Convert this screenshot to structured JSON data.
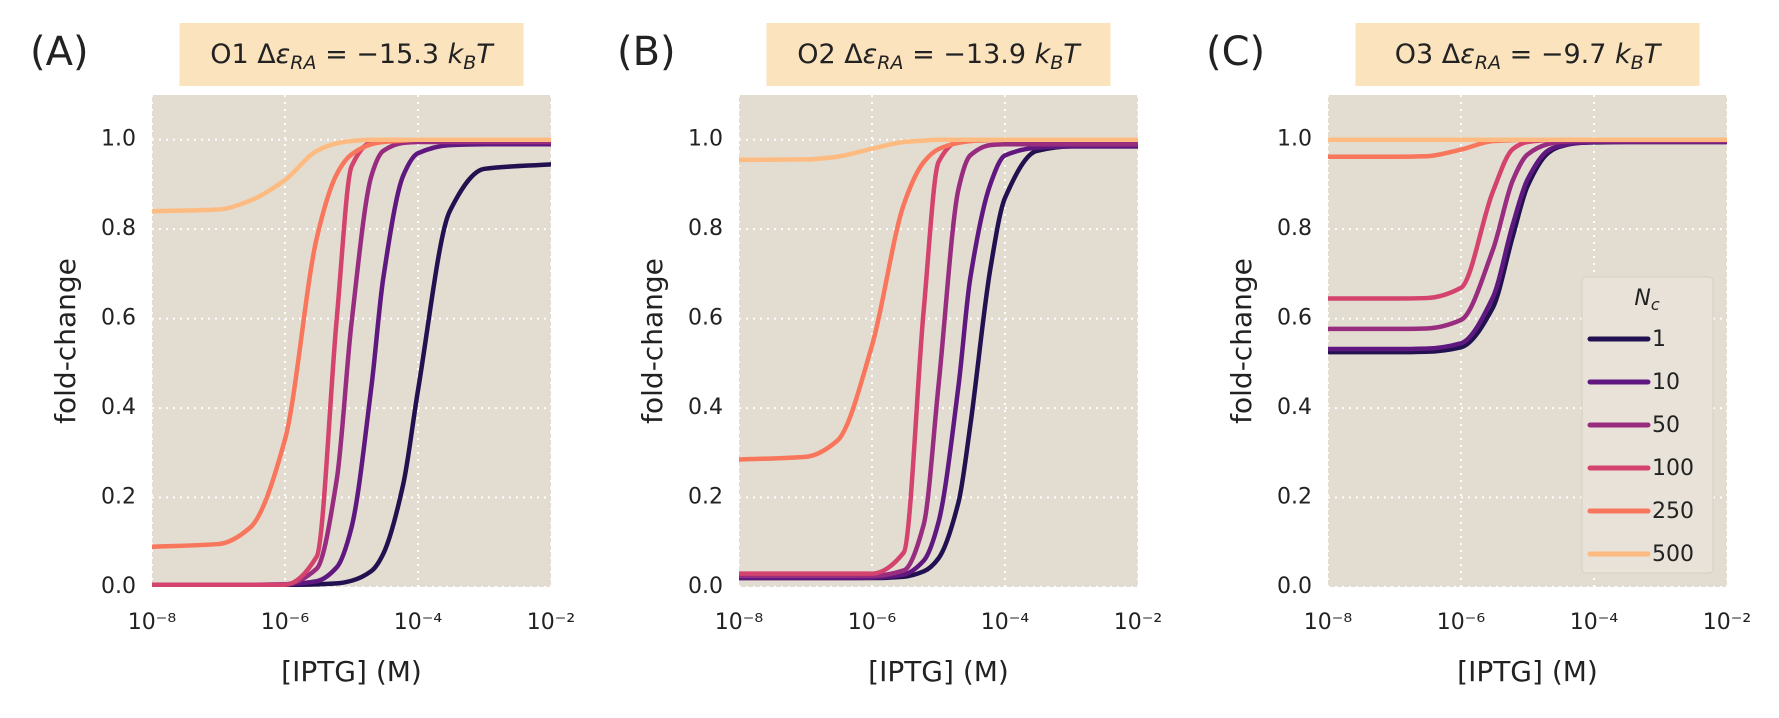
{
  "chart_data": [
    {
      "type": "line",
      "panel_label": "(A)",
      "title": [
        "O1 Δ",
        "ε",
        "RA",
        " = −15.3 ",
        "k",
        "B",
        "T"
      ],
      "xlabel": "[IPTG] (M)",
      "ylabel": "fold-change",
      "xscale": "log",
      "grid": true,
      "x": [
        1e-08,
        1e-07,
        3e-07,
        1e-06,
        3e-06,
        6e-06,
        1e-05,
        2e-05,
        3e-05,
        6e-05,
        0.0001,
        0.0003,
        0.001,
        0.01
      ],
      "xlim": [
        1e-08,
        0.01
      ],
      "xticks": [
        {
          "value": 1e-08,
          "label": "10⁻⁸"
        },
        {
          "value": 1e-06,
          "label": "10⁻⁶"
        },
        {
          "value": 0.0001,
          "label": "10⁻⁴"
        },
        {
          "value": 0.01,
          "label": "10⁻²"
        }
      ],
      "ylim": [
        0,
        1.1
      ],
      "yticks": [
        {
          "value": 0,
          "label": "0.0"
        },
        0.2,
        0.4,
        0.6,
        0.8,
        {
          "value": 1,
          "label": "1.0"
        }
      ],
      "series": [
        {
          "color": "#221150",
          "values": [
            0.005,
            0.005,
            0.005,
            0.005,
            0.006,
            0.008,
            0.014,
            0.036,
            0.074,
            0.23,
            0.44,
            0.84,
            0.935,
            0.945
          ]
        },
        {
          "color": "#5f187f",
          "values": [
            0.005,
            0.005,
            0.005,
            0.006,
            0.013,
            0.044,
            0.133,
            0.45,
            0.69,
            0.92,
            0.97,
            0.988,
            0.99,
            0.99
          ]
        },
        {
          "color": "#982d80",
          "values": [
            0.005,
            0.005,
            0.005,
            0.006,
            0.041,
            0.24,
            0.59,
            0.92,
            0.975,
            0.993,
            0.995,
            0.995,
            0.995,
            0.995
          ]
        },
        {
          "color": "#d3436e",
          "values": [
            0.005,
            0.005,
            0.005,
            0.005,
            0.068,
            0.6,
            0.94,
            0.995,
            0.999,
            1,
            1,
            1,
            1,
            1
          ]
        },
        {
          "color": "#f8765c",
          "values": [
            0.09,
            0.096,
            0.133,
            0.33,
            0.78,
            0.923,
            0.967,
            0.99,
            0.995,
            0.998,
            1,
            1,
            1,
            1
          ]
        },
        {
          "color": "#febb81",
          "values": [
            0.84,
            0.844,
            0.864,
            0.91,
            0.975,
            0.992,
            0.997,
            1,
            1,
            1,
            1,
            1,
            1,
            1
          ]
        }
      ]
    },
    {
      "type": "line",
      "panel_label": "(B)",
      "title": [
        "O2 Δ",
        "ε",
        "RA",
        " = −13.9 ",
        "k",
        "B",
        "T"
      ],
      "xlabel": "[IPTG] (M)",
      "ylabel": "fold-change",
      "xscale": "log",
      "grid": true,
      "x": [
        1e-08,
        1e-07,
        3e-07,
        1e-06,
        3e-06,
        6e-06,
        1e-05,
        2e-05,
        3e-05,
        6e-05,
        0.0001,
        0.0003,
        0.001,
        0.01
      ],
      "xlim": [
        1e-08,
        0.01
      ],
      "xticks": [
        {
          "value": 1e-08,
          "label": "10⁻⁸"
        },
        {
          "value": 1e-06,
          "label": "10⁻⁶"
        },
        {
          "value": 0.0001,
          "label": "10⁻⁴"
        },
        {
          "value": 0.01,
          "label": "10⁻²"
        }
      ],
      "ylim": [
        0,
        1.1
      ],
      "yticks": [
        {
          "value": 0,
          "label": "0.0"
        },
        0.2,
        0.4,
        0.6,
        0.8,
        {
          "value": 1,
          "label": "1.0"
        }
      ],
      "series": [
        {
          "color": "#221150",
          "values": [
            0.02,
            0.02,
            0.02,
            0.02,
            0.023,
            0.035,
            0.064,
            0.19,
            0.36,
            0.71,
            0.87,
            0.975,
            0.985,
            0.985
          ]
        },
        {
          "color": "#5f187f",
          "values": [
            0.02,
            0.02,
            0.02,
            0.021,
            0.028,
            0.059,
            0.145,
            0.45,
            0.69,
            0.9,
            0.965,
            0.982,
            0.985,
            0.985
          ]
        },
        {
          "color": "#982d80",
          "values": [
            0.025,
            0.025,
            0.025,
            0.025,
            0.037,
            0.14,
            0.45,
            0.89,
            0.965,
            0.988,
            0.99,
            0.99,
            0.99,
            0.99
          ]
        },
        {
          "color": "#d3436e",
          "values": [
            0.03,
            0.03,
            0.03,
            0.03,
            0.077,
            0.62,
            0.95,
            0.997,
            1,
            1,
            1,
            1,
            1,
            1
          ]
        },
        {
          "color": "#f8765c",
          "values": [
            0.285,
            0.291,
            0.327,
            0.54,
            0.855,
            0.95,
            0.979,
            0.993,
            0.997,
            0.999,
            1,
            1,
            1,
            1
          ]
        },
        {
          "color": "#febb81",
          "values": [
            0.955,
            0.956,
            0.962,
            0.98,
            0.995,
            0.998,
            1,
            1,
            1,
            1,
            1,
            1,
            1,
            1
          ]
        }
      ]
    },
    {
      "type": "line",
      "panel_label": "(C)",
      "title": [
        "O3 Δ",
        "ε",
        "RA",
        " = −9.7 ",
        "k",
        "B",
        "T"
      ],
      "xlabel": "[IPTG] (M)",
      "ylabel": "fold-change",
      "xscale": "log",
      "grid": true,
      "x": [
        1e-08,
        1e-07,
        3e-07,
        1e-06,
        3e-06,
        6e-06,
        1e-05,
        2e-05,
        3e-05,
        6e-05,
        0.0001,
        0.0003,
        0.001,
        0.01
      ],
      "xlim": [
        1e-08,
        0.01
      ],
      "xticks": [
        {
          "value": 1e-08,
          "label": "10⁻⁸"
        },
        {
          "value": 1e-06,
          "label": "10⁻⁶"
        },
        {
          "value": 0.0001,
          "label": "10⁻⁴"
        },
        {
          "value": 0.01,
          "label": "10⁻²"
        }
      ],
      "ylim": [
        0,
        1.1
      ],
      "yticks": [
        {
          "value": 0,
          "label": "0.0"
        },
        0.2,
        0.4,
        0.6,
        0.8,
        {
          "value": 1,
          "label": "1.0"
        }
      ],
      "legend": "lower right",
      "legend_title": [
        "N",
        "c"
      ],
      "series": [
        {
          "name": "1",
          "color": "#221150",
          "values": [
            0.525,
            0.525,
            0.526,
            0.536,
            0.624,
            0.784,
            0.896,
            0.969,
            0.984,
            0.993,
            0.994,
            0.995,
            0.995,
            0.995
          ]
        },
        {
          "name": "10",
          "color": "#5f187f",
          "values": [
            0.532,
            0.532,
            0.533,
            0.545,
            0.647,
            0.81,
            0.911,
            0.975,
            0.986,
            0.993,
            0.995,
            0.995,
            0.995,
            0.995
          ]
        },
        {
          "name": "50",
          "color": "#982d80",
          "values": [
            0.577,
            0.577,
            0.578,
            0.597,
            0.753,
            0.909,
            0.967,
            0.99,
            0.995,
            0.997,
            0.997,
            0.997,
            0.997,
            0.997
          ]
        },
        {
          "name": "100",
          "color": "#d3436e",
          "values": [
            0.645,
            0.645,
            0.646,
            0.669,
            0.883,
            0.979,
            0.995,
            0.999,
            1,
            1,
            1,
            1,
            1,
            1
          ]
        },
        {
          "name": "250",
          "color": "#f8765c",
          "values": [
            0.962,
            0.962,
            0.963,
            0.978,
            0.997,
            0.999,
            1,
            1,
            1,
            1,
            1,
            1,
            1,
            1
          ]
        },
        {
          "name": "500",
          "color": "#febb81",
          "values": [
            1,
            1,
            1,
            1,
            1,
            1,
            1,
            1,
            1,
            1,
            1,
            1,
            1,
            1
          ]
        }
      ]
    }
  ]
}
